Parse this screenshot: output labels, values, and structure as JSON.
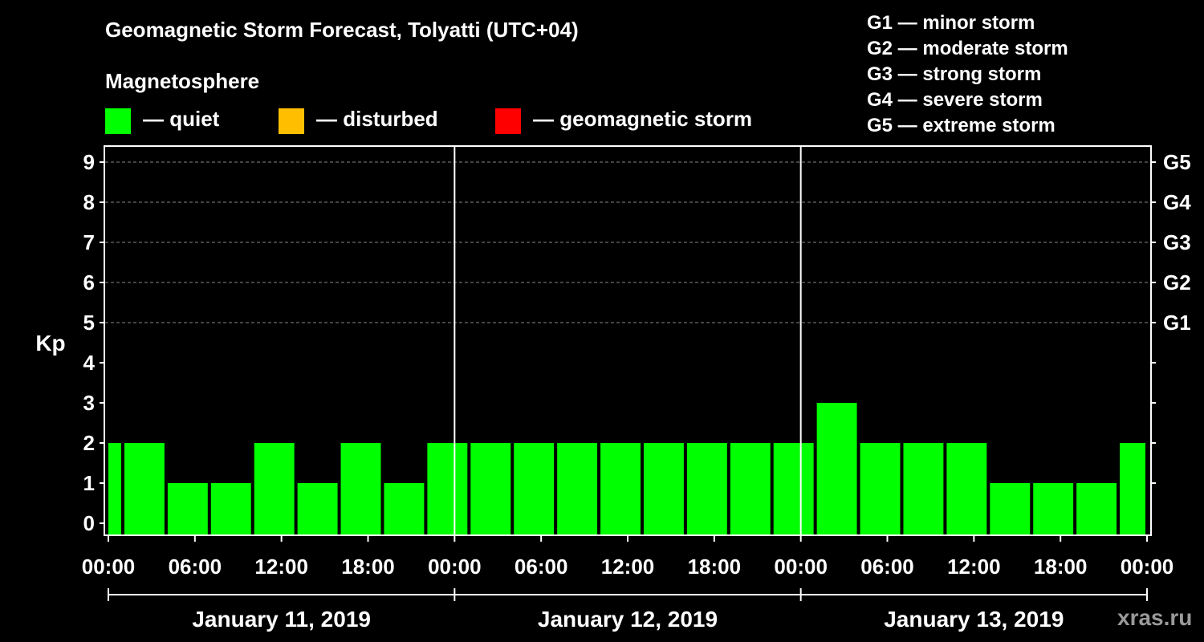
{
  "chart_data": {
    "type": "bar",
    "title": "Geomagnetic Storm Forecast, Tolyatti (UTC+04)",
    "subtitle": "Magnetosphere",
    "ylabel": "Kp",
    "ylim": [
      0,
      9
    ],
    "y_ticks": [
      "0",
      "1",
      "2",
      "3",
      "4",
      "5",
      "6",
      "7",
      "8",
      "9"
    ],
    "right_axis_labels": [
      {
        "value": 5,
        "label": "G1"
      },
      {
        "value": 6,
        "label": "G2"
      },
      {
        "value": 7,
        "label": "G3"
      },
      {
        "value": 8,
        "label": "G4"
      },
      {
        "value": 9,
        "label": "G5"
      }
    ],
    "x_tick_labels": [
      "00:00",
      "06:00",
      "12:00",
      "18:00",
      "00:00",
      "06:00",
      "12:00",
      "18:00",
      "00:00",
      "06:00",
      "12:00",
      "18:00",
      "00:00"
    ],
    "dates": [
      "January 11, 2019",
      "January 12, 2019",
      "January 13, 2019"
    ],
    "hours_total": 72,
    "bar_interval_hours": 3,
    "bars": [
      {
        "start": 0,
        "end": 1,
        "value": 2
      },
      {
        "start": 1,
        "end": 4,
        "value": 2
      },
      {
        "start": 4,
        "end": 7,
        "value": 1
      },
      {
        "start": 7,
        "end": 10,
        "value": 1
      },
      {
        "start": 10,
        "end": 13,
        "value": 2
      },
      {
        "start": 13,
        "end": 16,
        "value": 1
      },
      {
        "start": 16,
        "end": 19,
        "value": 2
      },
      {
        "start": 19,
        "end": 22,
        "value": 1
      },
      {
        "start": 22,
        "end": 25,
        "value": 2
      },
      {
        "start": 25,
        "end": 28,
        "value": 2
      },
      {
        "start": 28,
        "end": 31,
        "value": 2
      },
      {
        "start": 31,
        "end": 34,
        "value": 2
      },
      {
        "start": 34,
        "end": 37,
        "value": 2
      },
      {
        "start": 37,
        "end": 40,
        "value": 2
      },
      {
        "start": 40,
        "end": 43,
        "value": 2
      },
      {
        "start": 43,
        "end": 46,
        "value": 2
      },
      {
        "start": 46,
        "end": 49,
        "value": 2
      },
      {
        "start": 49,
        "end": 52,
        "value": 3
      },
      {
        "start": 52,
        "end": 55,
        "value": 2
      },
      {
        "start": 55,
        "end": 58,
        "value": 2
      },
      {
        "start": 58,
        "end": 61,
        "value": 2
      },
      {
        "start": 61,
        "end": 64,
        "value": 1
      },
      {
        "start": 64,
        "end": 67,
        "value": 1
      },
      {
        "start": 67,
        "end": 70,
        "value": 1
      },
      {
        "start": 70,
        "end": 72,
        "value": 2
      }
    ],
    "legend": [
      {
        "label": "— quiet",
        "color": "#00ff00"
      },
      {
        "label": "— disturbed",
        "color": "#ffbf00"
      },
      {
        "label": "— geomagnetic storm",
        "color": "#ff0000"
      }
    ],
    "storm_levels": [
      "G1 — minor storm",
      "G2 — moderate storm",
      "G3 — strong storm",
      "G4 — severe storm",
      "G5 — extreme storm"
    ],
    "grid": true
  },
  "watermark": "xras.ru"
}
